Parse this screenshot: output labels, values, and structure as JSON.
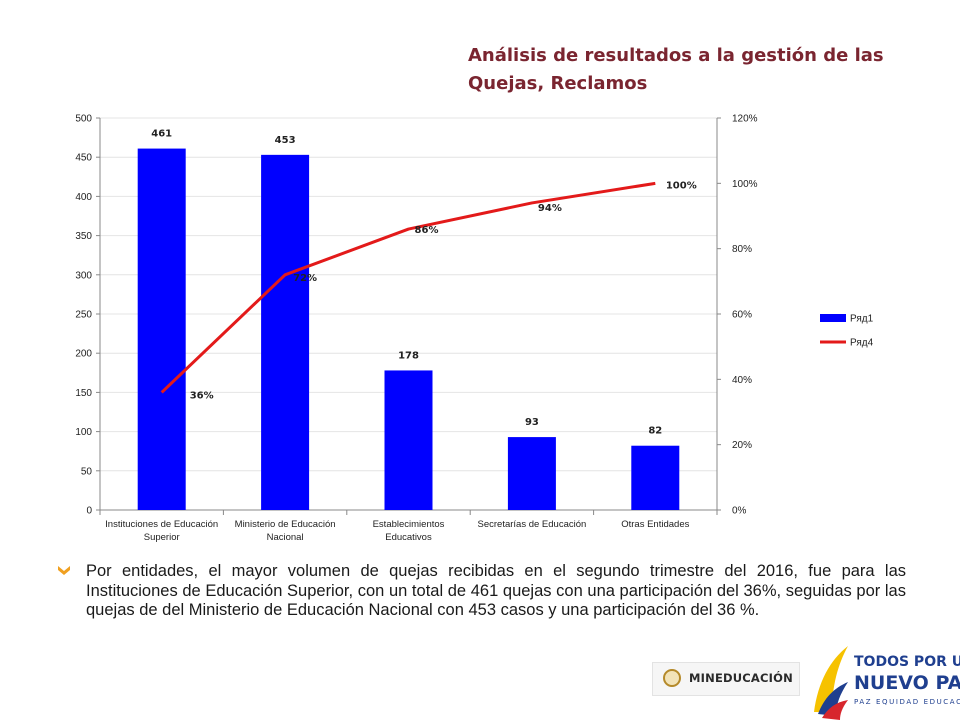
{
  "title": {
    "line1": "Análisis de resultados a la gestión de las",
    "line2": "Quejas, Reclamos"
  },
  "chart_data": {
    "type": "bar",
    "categories": [
      [
        "Instituciones de Educación",
        "Superior"
      ],
      [
        "Ministerio de Educación",
        "Nacional"
      ],
      [
        "Establecimientos",
        "Educativos"
      ],
      [
        "Secretarías de Educación"
      ],
      [
        "Otras Entidades"
      ]
    ],
    "series": [
      {
        "name": "Ряд1",
        "type": "bar",
        "axis": "left",
        "values": [
          461,
          453,
          178,
          93,
          82
        ],
        "labels": [
          "461",
          "453",
          "178",
          "93",
          "82"
        ],
        "color": "#0000ff"
      },
      {
        "name": "Ряд4",
        "type": "line",
        "axis": "right",
        "values": [
          0.36,
          0.72,
          0.86,
          0.94,
          1.0
        ],
        "labels": [
          "36%",
          "72%",
          "86%",
          "94%",
          "100%"
        ],
        "color": "#e31a1a"
      }
    ],
    "ylim": [
      0,
      500
    ],
    "y_ticks": [
      "0",
      "50",
      "100",
      "150",
      "200",
      "250",
      "300",
      "350",
      "400",
      "450",
      "500"
    ],
    "y2lim": [
      0,
      1.2
    ],
    "y2_ticks": [
      "0%",
      "20%",
      "40%",
      "60%",
      "80%",
      "100%",
      "120%"
    ],
    "grid": true,
    "legend": "right"
  },
  "body": {
    "paragraph": "Por entidades, el mayor volumen de quejas recibidas en el segundo trimestre del 2016, fue para las Instituciones de Educación Superior, con un total de 461 quejas con una participación del 36%, seguidas por las quejas de del Ministerio de Educación Nacional  con 453 casos y una participación del 36 %."
  },
  "logos": {
    "mineducacion": "MINEDUCACIÓN",
    "tpu_line1": "TODOS POR UN",
    "tpu_line2": "NUEVO PAÍS",
    "tpu_line3": "PAZ EQUIDAD EDUCACIÓN"
  }
}
